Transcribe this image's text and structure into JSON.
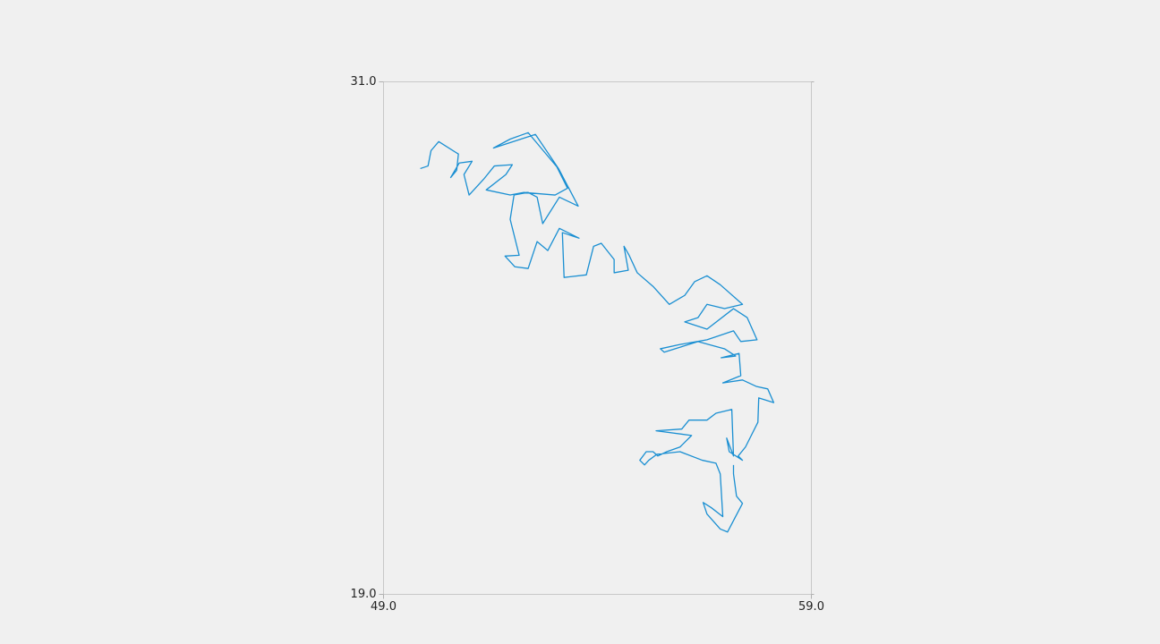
{
  "chart_data": {
    "type": "line",
    "x": [
      49.86,
      50.04,
      50.11,
      50.29,
      50.75,
      50.71,
      50.57,
      50.77,
      51.07,
      50.88,
      51.0,
      51.34,
      51.59,
      52.01,
      51.86,
      51.4,
      51.96,
      52.28,
      53.01,
      53.3,
      53.05,
      52.59,
      52.38,
      51.96,
      51.57,
      52.55,
      53.09,
      53.55,
      53.11,
      52.72,
      52.59,
      52.38,
      52.05,
      51.96,
      52.17,
      51.84,
      52.07,
      52.38,
      52.59,
      52.84,
      53.11,
      53.57,
      53.18,
      53.22,
      53.74,
      53.91,
      54.09,
      54.39,
      54.39,
      54.72,
      54.62,
      54.74,
      54.93,
      55.3,
      55.68,
      56.04,
      56.27,
      56.56,
      56.87,
      57.39,
      56.97,
      56.56,
      56.35,
      56.04,
      56.56,
      57.18,
      57.5,
      57.73,
      57.35,
      57.18,
      56.56,
      55.93,
      55.47,
      55.56,
      56.35,
      56.97,
      57.23,
      56.89,
      57.31,
      57.35,
      56.93,
      57.39,
      57.71,
      57.98,
      58.12,
      57.77,
      57.75,
      57.46,
      57.29,
      57.39,
      57.08,
      57.02,
      57.18,
      57.14,
      56.77,
      56.56,
      56.14,
      55.97,
      55.37,
      56.2,
      55.93,
      55.62,
      55.41,
      55.3,
      55.14,
      54.99,
      55.1,
      55.2,
      55.39,
      55.93,
      56.45,
      56.77,
      56.87,
      56.93,
      56.66,
      56.47,
      56.56,
      56.87,
      57.04,
      57.39,
      57.25,
      57.18,
      57.18
    ],
    "values": [
      28.97,
      29.03,
      29.39,
      29.6,
      29.31,
      28.93,
      28.76,
      29.1,
      29.14,
      28.83,
      28.35,
      28.72,
      29.03,
      29.06,
      28.83,
      28.47,
      28.35,
      28.41,
      28.35,
      28.51,
      29.01,
      29.56,
      29.81,
      29.66,
      29.45,
      29.77,
      28.97,
      28.09,
      28.3,
      27.68,
      28.3,
      28.41,
      28.35,
      27.78,
      26.94,
      26.92,
      26.67,
      26.63,
      27.26,
      27.05,
      27.57,
      27.34,
      27.47,
      26.42,
      26.48,
      27.15,
      27.22,
      26.84,
      26.53,
      26.59,
      27.15,
      26.94,
      26.53,
      26.21,
      25.79,
      26.0,
      26.32,
      26.46,
      26.25,
      25.79,
      25.69,
      25.79,
      25.48,
      25.38,
      25.21,
      25.69,
      25.48,
      24.96,
      24.92,
      25.17,
      24.96,
      24.85,
      24.75,
      24.67,
      24.92,
      24.75,
      24.58,
      24.54,
      24.64,
      24.12,
      23.95,
      24.02,
      23.87,
      23.81,
      23.49,
      23.6,
      23.03,
      22.45,
      22.24,
      22.14,
      22.34,
      22.66,
      22.24,
      23.33,
      23.24,
      23.08,
      23.08,
      22.87,
      22.83,
      22.72,
      22.45,
      22.34,
      22.24,
      22.34,
      22.34,
      22.14,
      22.03,
      22.14,
      22.28,
      22.34,
      22.14,
      22.07,
      21.82,
      20.82,
      21.03,
      21.15,
      20.88,
      20.53,
      20.46,
      21.13,
      21.3,
      21.82,
      22.03
    ],
    "color": "#1a8fd2",
    "xlim": [
      49,
      59
    ],
    "ylim": [
      19,
      31
    ],
    "xticks": [
      {
        "value": 49,
        "label": "49.0"
      },
      {
        "value": 59,
        "label": "59.0"
      }
    ],
    "yticks": [
      {
        "value": 19,
        "label": "19.0"
      },
      {
        "value": 31,
        "label": "31.0"
      }
    ]
  }
}
